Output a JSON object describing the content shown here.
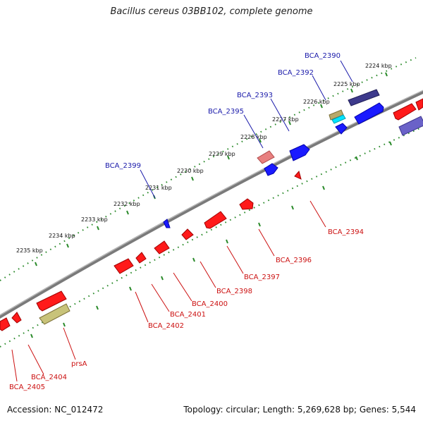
{
  "title": "Bacillus cereus 03BB102, complete genome",
  "footer": {
    "accession": "Accession: NC_012472",
    "topology": "Topology: circular; Length: 5,269,628 bp; Genes: 5,544"
  },
  "colors": {
    "backbone": "#888888",
    "tick": "#2a8a2a",
    "forward_cds": "#1a1aff",
    "reverse_cds": "#ff1a1a",
    "forward_label": "#1a1aaa",
    "reverse_label": "#cc1111",
    "rna": "#c8c37a",
    "pseudo_forward": "#6a62c8",
    "pseudo_reverse": "#e88080"
  },
  "scale_labels": [
    "2224 kbp",
    "2225 kbp",
    "2226 kbp",
    "2227 kbp",
    "2228 kbp",
    "2229 kbp",
    "2230 kbp",
    "2231 kbp",
    "2232 kbp",
    "2233 kbp",
    "2234 kbp",
    "2235 kbp"
  ],
  "gene_labels_forward": [
    "BCA_2390",
    "BCA_2392",
    "BCA_2393",
    "BCA_2395",
    "BCA_2399"
  ],
  "gene_labels_reverse": [
    "BCA_2394",
    "BCA_2396",
    "BCA_2397",
    "BCA_2398",
    "BCA_2400",
    "BCA_2401",
    "BCA_2402",
    "prsA",
    "BCA_2404",
    "BCA_2405"
  ]
}
